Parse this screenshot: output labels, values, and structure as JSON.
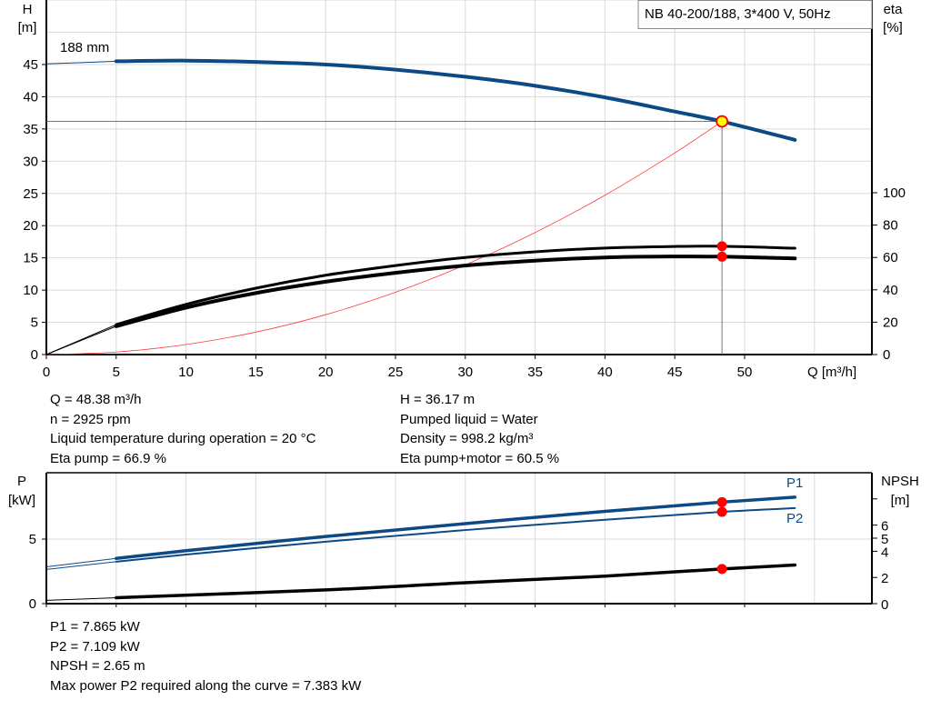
{
  "chart_data": [
    {
      "type": "line",
      "title": "NB 40-200/188, 3*400 V, 50Hz",
      "xlabel": "Q [m³/h]",
      "ylabel_left": [
        "H",
        "[m]"
      ],
      "ylabel_right": [
        "eta",
        "[%]"
      ],
      "xlim": [
        0,
        59
      ],
      "ylim_left": [
        0,
        55
      ],
      "ylim_right": [
        0,
        219
      ],
      "x_ticks": [
        0,
        5,
        10,
        15,
        20,
        25,
        30,
        35,
        40,
        45,
        50
      ],
      "y_ticks_left": [
        0,
        5,
        10,
        15,
        20,
        25,
        30,
        35,
        40,
        45
      ],
      "y_ticks_right": [
        0,
        20,
        40,
        60,
        80,
        100
      ],
      "grid": true,
      "curve_label": "188 mm",
      "series": [
        {
          "key": "H",
          "axis": "left",
          "color": "#0d4a85",
          "points": [
            [
              0,
              45.1
            ],
            [
              5,
              45.5
            ],
            [
              10,
              45.6
            ],
            [
              15,
              45.4
            ],
            [
              20,
              45.0
            ],
            [
              25,
              44.2
            ],
            [
              30,
              43.1
            ],
            [
              35,
              41.7
            ],
            [
              40,
              39.9
            ],
            [
              45,
              37.7
            ],
            [
              48.38,
              36.17
            ],
            [
              53.6,
              33.3
            ]
          ]
        },
        {
          "key": "eta_pump",
          "axis": "right",
          "color": "#000000",
          "points": [
            [
              0,
              0
            ],
            [
              5,
              18.5
            ],
            [
              10,
              31
            ],
            [
              15,
              41
            ],
            [
              20,
              49
            ],
            [
              25,
              55
            ],
            [
              30,
              60
            ],
            [
              35,
              63.5
            ],
            [
              40,
              65.8
            ],
            [
              45,
              66.8
            ],
            [
              48.38,
              66.9
            ],
            [
              53.6,
              65.7
            ]
          ]
        },
        {
          "key": "eta_pump_motor",
          "axis": "right",
          "color": "#000000",
          "points": [
            [
              0,
              0
            ],
            [
              5,
              17.5
            ],
            [
              10,
              29
            ],
            [
              15,
              38
            ],
            [
              20,
              45
            ],
            [
              25,
              50.5
            ],
            [
              30,
              55
            ],
            [
              35,
              58
            ],
            [
              40,
              60
            ],
            [
              45,
              60.6
            ],
            [
              48.38,
              60.5
            ],
            [
              53.6,
              59.4
            ]
          ]
        },
        {
          "key": "system",
          "axis": "left",
          "color": "#ff3b3b",
          "points": [
            [
              0,
              0
            ],
            [
              5,
              0.39
            ],
            [
              10,
              1.55
            ],
            [
              15,
              3.48
            ],
            [
              20,
              6.18
            ],
            [
              25,
              9.66
            ],
            [
              30,
              13.91
            ],
            [
              35,
              18.93
            ],
            [
              40,
              24.72
            ],
            [
              45,
              31.29
            ],
            [
              48.38,
              36.17
            ]
          ]
        }
      ],
      "operating_point": {
        "Q": 48.38,
        "H": 36.17,
        "eta_pump": 66.9,
        "eta_pump_motor": 60.5
      }
    },
    {
      "type": "line",
      "xlim": [
        0,
        59
      ],
      "ylabel_left": [
        "P",
        "[kW]"
      ],
      "ylabel_right": [
        "NPSH",
        "[m]"
      ],
      "ylim_left": [
        0,
        10.1
      ],
      "ylim_right": [
        0,
        10
      ],
      "y_ticks_left": [
        0,
        5
      ],
      "y_ticks_right": [
        0,
        2,
        4,
        5,
        6
      ],
      "y_ticks_right_unlabeled": [
        8
      ],
      "grid": true,
      "series": [
        {
          "key": "P1",
          "name": "P1",
          "axis": "left",
          "color": "#0d4a85",
          "points": [
            [
              0,
              2.85
            ],
            [
              5,
              3.5
            ],
            [
              10,
              4.1
            ],
            [
              20,
              5.2
            ],
            [
              30,
              6.2
            ],
            [
              40,
              7.15
            ],
            [
              48.38,
              7.865
            ],
            [
              53.6,
              8.25
            ]
          ]
        },
        {
          "key": "P2",
          "name": "P2",
          "axis": "left",
          "color": "#0d4a85",
          "points": [
            [
              0,
              2.65
            ],
            [
              5,
              3.25
            ],
            [
              10,
              3.8
            ],
            [
              20,
              4.8
            ],
            [
              30,
              5.7
            ],
            [
              40,
              6.5
            ],
            [
              48.38,
              7.109
            ],
            [
              53.6,
              7.4
            ]
          ]
        },
        {
          "key": "NPSH",
          "axis": "right",
          "color": "#000000",
          "points": [
            [
              0,
              0.25
            ],
            [
              5,
              0.45
            ],
            [
              20,
              1.05
            ],
            [
              30,
              1.6
            ],
            [
              40,
              2.1
            ],
            [
              48.38,
              2.65
            ],
            [
              53.6,
              2.95
            ]
          ]
        }
      ],
      "operating_point": {
        "Q": 48.38,
        "P1": 7.865,
        "P2": 7.109,
        "NPSH": 2.65
      }
    }
  ],
  "info_top": {
    "left": [
      "Q = 48.38 m³/h",
      "n = 2925 rpm",
      "Liquid temperature during operation = 20 °C",
      "Eta pump = 66.9 %"
    ],
    "right": [
      "H = 36.17 m",
      "Pumped liquid = Water",
      "Density = 998.2 kg/m³",
      "Eta pump+motor = 60.5 %"
    ]
  },
  "info_bottom": [
    "P1 = 7.865 kW",
    "P2 = 7.109 kW",
    "NPSH = 2.65 m",
    "Max power P2 required along the curve = 7.383 kW"
  ],
  "colors": {
    "blue": "#0d4a85",
    "red": "#ff0000",
    "op_point_fill": "#ffff00",
    "grid": "#d9d9d9"
  }
}
